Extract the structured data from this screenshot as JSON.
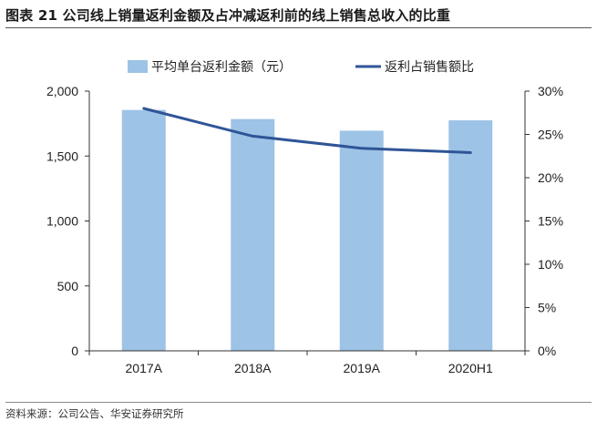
{
  "figure_title": "图表 21  公司线上销量返利金额及占冲减返利前的线上销售总收入的比重",
  "source_note": "资料来源：公司公告、华安证券研究所",
  "chart_data": {
    "type": "bar",
    "categories": [
      "2017A",
      "2018A",
      "2019A",
      "2020H1"
    ],
    "series": [
      {
        "name": "平均单台返利金额（元）",
        "type": "bar",
        "axis": "left",
        "values": [
          1855,
          1785,
          1695,
          1775
        ],
        "color": "#9DC3E6"
      },
      {
        "name": "返利占销售额比",
        "type": "line",
        "axis": "right",
        "values": [
          0.28,
          0.248,
          0.234,
          0.229
        ],
        "color": "#2F5597"
      }
    ],
    "y_left": {
      "min": 0,
      "max": 2000,
      "ticks": [
        0,
        500,
        1000,
        1500,
        2000
      ],
      "tick_labels": [
        "0",
        "500",
        "1,000",
        "1,500",
        "2,000"
      ]
    },
    "y_right": {
      "min": 0,
      "max": 0.3,
      "ticks": [
        0,
        0.05,
        0.1,
        0.15,
        0.2,
        0.25,
        0.3
      ],
      "tick_labels": [
        "0%",
        "5%",
        "10%",
        "15%",
        "20%",
        "25%",
        "30%"
      ]
    },
    "grid": false,
    "legend_position": "top"
  }
}
